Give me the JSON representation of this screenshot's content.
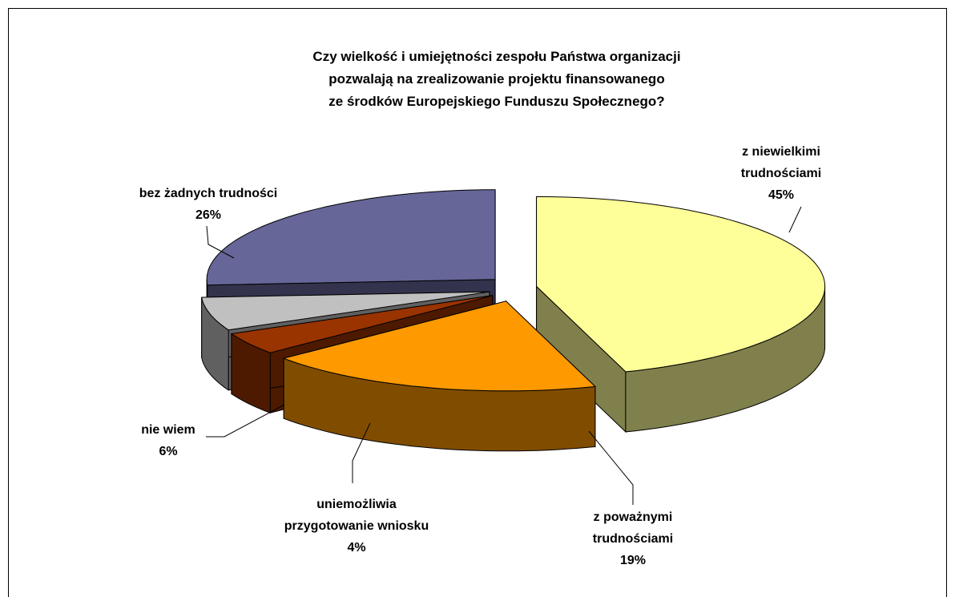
{
  "chart_data": {
    "type": "pie3d",
    "title": "Czy wielkość i umiejętności zespołu Państwa organizacji\npozwalają na zrealizowanie projektu finansowanego\nze środków Europejskiego Funduszu Społecznego?",
    "categories": [
      "z niewielkimi\ntrudnościami",
      "z poważnymi\ntrudnościami",
      "uniemożliwia\nprzygotowanie wniosku",
      "nie wiem",
      "bez żadnych trudności"
    ],
    "values": [
      45,
      19,
      4,
      6,
      26
    ],
    "value_labels": [
      "45%",
      "19%",
      "4%",
      "6%",
      "26%"
    ],
    "colors": [
      "#ffff99",
      "#ff9900",
      "#993300",
      "#c0c0c0",
      "#666699"
    ]
  }
}
